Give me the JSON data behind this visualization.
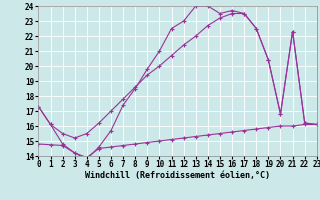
{
  "background_color": "#cce8e8",
  "grid_color": "#ffffff",
  "line_color": "#993399",
  "xlabel": "Windchill (Refroidissement éolien,°C)",
  "xlim": [
    0,
    23
  ],
  "ylim": [
    14,
    24
  ],
  "xticks": [
    0,
    1,
    2,
    3,
    4,
    5,
    6,
    7,
    8,
    9,
    10,
    11,
    12,
    13,
    14,
    15,
    16,
    17,
    18,
    19,
    20,
    21,
    22,
    23
  ],
  "yticks": [
    14,
    15,
    16,
    17,
    18,
    19,
    20,
    21,
    22,
    23,
    24
  ],
  "curve1_x": [
    0,
    1,
    2,
    3,
    4,
    5,
    6,
    7,
    8,
    9,
    10,
    11,
    12,
    13,
    14,
    15,
    16,
    17,
    18,
    19,
    20,
    21,
    22,
    23
  ],
  "curve1_y": [
    17.3,
    16.1,
    14.8,
    14.2,
    13.8,
    14.6,
    15.7,
    17.4,
    18.5,
    19.8,
    21.0,
    22.5,
    23.0,
    24.0,
    24.0,
    23.5,
    23.7,
    23.5,
    22.5,
    20.4,
    16.8,
    22.3,
    16.2,
    16.1
  ],
  "curve2_x": [
    0,
    1,
    2,
    3,
    4,
    5,
    6,
    7,
    8,
    9,
    10,
    11,
    12,
    13,
    14,
    15,
    16,
    17,
    18,
    19,
    20,
    21,
    22,
    23
  ],
  "curve2_y": [
    17.3,
    16.1,
    15.5,
    15.2,
    15.5,
    16.2,
    17.0,
    17.8,
    18.6,
    19.4,
    20.0,
    20.7,
    21.4,
    22.0,
    22.7,
    23.2,
    23.5,
    23.5,
    22.5,
    20.4,
    16.8,
    22.3,
    16.2,
    16.1
  ],
  "curve3_x": [
    0,
    1,
    2,
    3,
    4,
    5,
    6,
    7,
    8,
    9,
    10,
    11,
    12,
    13,
    14,
    15,
    16,
    17,
    18,
    19,
    20,
    21,
    22,
    23
  ],
  "curve3_y": [
    14.8,
    14.75,
    14.7,
    14.2,
    13.9,
    14.5,
    14.6,
    14.7,
    14.8,
    14.9,
    15.0,
    15.1,
    15.2,
    15.3,
    15.4,
    15.5,
    15.6,
    15.7,
    15.8,
    15.9,
    16.0,
    16.0,
    16.1,
    16.1
  ],
  "tick_fontsize": 5.5,
  "xlabel_fontsize": 6.0
}
